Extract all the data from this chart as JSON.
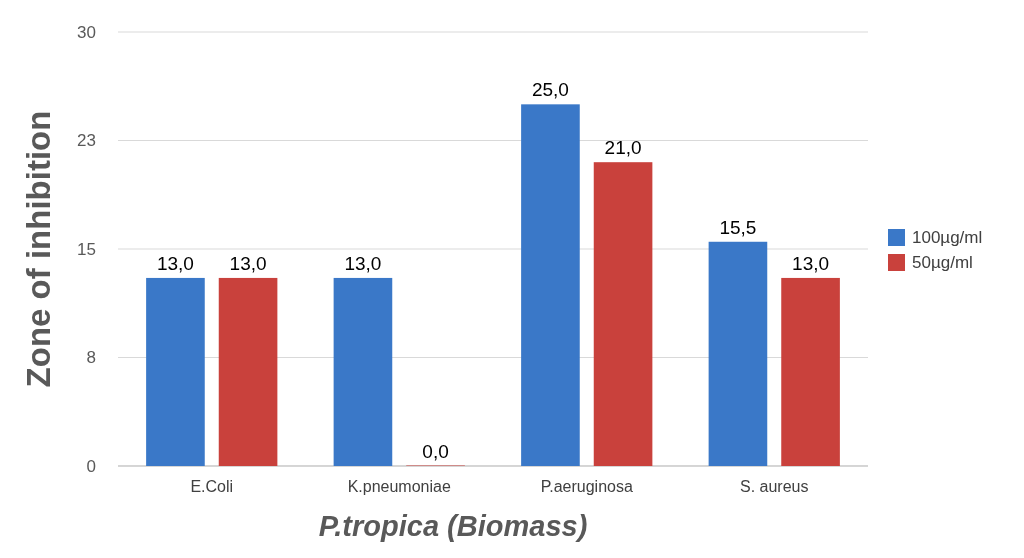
{
  "chart_data": {
    "type": "bar",
    "xlabel": "P.tropica (Biomass)",
    "ylabel": "Zone of inhibition",
    "categories": [
      "E.Coli",
      "K.pneumoniae",
      "P.aeruginosa",
      "S. aureus"
    ],
    "series": [
      {
        "name": "100µg/ml",
        "color": "#3a78c8",
        "values": [
          13,
          13,
          25,
          15.5
        ],
        "value_labels": [
          "13,0",
          "13,0",
          "25,0",
          "15,5"
        ]
      },
      {
        "name": "50µg/ml",
        "color": "#c9413c",
        "values": [
          13,
          0,
          21,
          13
        ],
        "value_labels": [
          "13,0",
          "0,0",
          "21,0",
          "13,0"
        ]
      }
    ],
    "ylim": [
      0,
      30
    ],
    "yticks": [
      0,
      {
        "value": 7.5,
        "label": "8"
      },
      15,
      {
        "value": 22.5,
        "label": "23"
      },
      30
    ],
    "grid": "y",
    "legend": "right"
  }
}
